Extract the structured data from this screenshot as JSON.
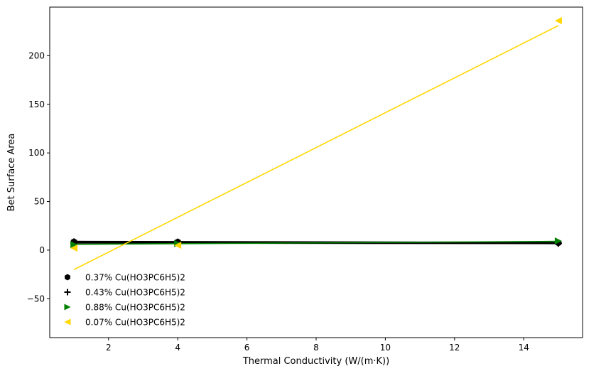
{
  "chart_data": {
    "type": "scatter",
    "title": "",
    "xlabel": "Thermal Conductivity (W/(m·K))",
    "ylabel": "Bet Surface Area",
    "xlim": [
      0.3,
      15.7
    ],
    "ylim": [
      -90,
      250
    ],
    "xticks": [
      2,
      4,
      6,
      8,
      10,
      12,
      14
    ],
    "yticks": [
      -50,
      0,
      50,
      100,
      150,
      200
    ],
    "grid": false,
    "legend_position": "lower-left",
    "series": [
      {
        "name": "0.37% Cu(HO3PC6H5)2",
        "marker": "hexagon",
        "color": "#000000",
        "x": [
          1,
          4,
          15
        ],
        "y": [
          8.6,
          8.4,
          7.4
        ],
        "fit": {
          "x": [
            1,
            15
          ],
          "y": [
            8.5,
            7.5
          ]
        }
      },
      {
        "name": "0.43% Cu(HO3PC6H5)2",
        "marker": "plus",
        "color": "#000000",
        "x": [
          1,
          4,
          15
        ],
        "y": [
          8.0,
          7.6,
          7.2
        ],
        "fit": {
          "x": [
            1,
            15
          ],
          "y": [
            7.8,
            7.2
          ]
        }
      },
      {
        "name": "0.88% Cu(HO3PC6H5)2",
        "marker": "triangle-right",
        "color": "#008000",
        "x": [
          1,
          4,
          15
        ],
        "y": [
          5.8,
          6.8,
          9.4
        ],
        "fit": {
          "x": [
            1,
            15
          ],
          "y": [
            6.0,
            9.0
          ]
        }
      },
      {
        "name": "0.07% Cu(HO3PC6H5)2",
        "marker": "triangle-left",
        "color": "#FFD700",
        "x": [
          1,
          4,
          15
        ],
        "y": [
          2.0,
          5.0,
          236
        ],
        "fit": {
          "x": [
            1,
            15
          ],
          "y": [
            -20,
            231
          ]
        }
      }
    ]
  }
}
